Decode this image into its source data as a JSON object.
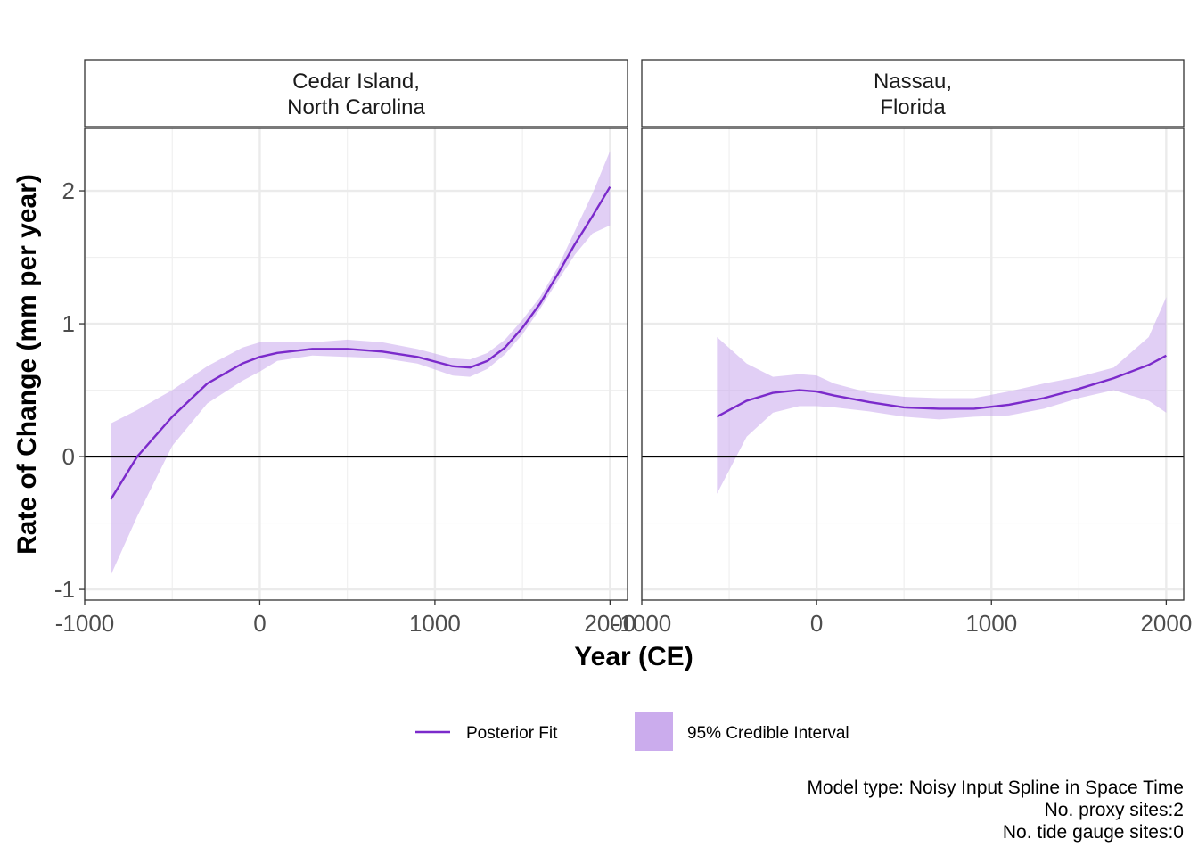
{
  "chart_data": {
    "type": "line",
    "xlabel": "Year (CE)",
    "ylabel": "Rate of Change (mm per year)",
    "xlim": [
      -1000,
      2100
    ],
    "ylim": [
      -1.08,
      2.47
    ],
    "x_ticks": [
      -1000,
      0,
      1000,
      2000
    ],
    "x_tick_labels": [
      "-1000",
      "0",
      "1000",
      "2000"
    ],
    "y_ticks": [
      -1,
      0,
      1,
      2
    ],
    "y_tick_labels": [
      "-1",
      "0",
      "1",
      "2"
    ],
    "grid": true,
    "legend_position": "bottom",
    "reference_line_y": 0,
    "colors": {
      "fit": "#7b2acb",
      "band": "#c8a8ec",
      "band_opacity": 0.55,
      "ref_line": "#000000"
    },
    "legend": [
      {
        "label": "Posterior Fit",
        "kind": "line"
      },
      {
        "label": "95% Credible Interval",
        "kind": "band"
      }
    ],
    "caption": [
      "Model type: Noisy Input Spline in Space Time",
      "No. proxy sites:2",
      "No. tide gauge sites:0"
    ],
    "panels": [
      {
        "title_lines": [
          "Cedar Island,",
          "North Carolina"
        ],
        "series": [
          {
            "name": "Posterior Fit",
            "x": [
              -850,
              -700,
              -500,
              -300,
              -100,
              0,
              100,
              300,
              500,
              700,
              900,
              1100,
              1200,
              1300,
              1400,
              1500,
              1600,
              1700,
              1800,
              1900,
              2000
            ],
            "y": [
              -0.32,
              0.0,
              0.3,
              0.55,
              0.7,
              0.75,
              0.78,
              0.81,
              0.81,
              0.79,
              0.75,
              0.68,
              0.67,
              0.72,
              0.82,
              0.97,
              1.15,
              1.37,
              1.6,
              1.81,
              2.03
            ]
          }
        ],
        "band": {
          "name": "95% Credible Interval",
          "x": [
            -850,
            -700,
            -500,
            -300,
            -100,
            0,
            100,
            300,
            500,
            700,
            900,
            1100,
            1200,
            1300,
            1400,
            1500,
            1600,
            1700,
            1800,
            1900,
            2000
          ],
          "lower": [
            -0.89,
            -0.45,
            0.08,
            0.4,
            0.57,
            0.64,
            0.72,
            0.76,
            0.75,
            0.74,
            0.7,
            0.61,
            0.6,
            0.66,
            0.77,
            0.92,
            1.11,
            1.32,
            1.52,
            1.68,
            1.74
          ],
          "upper": [
            0.25,
            0.35,
            0.5,
            0.68,
            0.82,
            0.86,
            0.86,
            0.86,
            0.88,
            0.86,
            0.81,
            0.74,
            0.73,
            0.78,
            0.88,
            1.03,
            1.2,
            1.42,
            1.7,
            1.98,
            2.3
          ]
        }
      },
      {
        "title_lines": [
          "Nassau,",
          "Florida"
        ],
        "series": [
          {
            "name": "Posterior Fit",
            "x": [
              -570,
              -400,
              -250,
              -100,
              0,
              100,
              300,
              500,
              700,
              900,
              1100,
              1300,
              1500,
              1700,
              1900,
              2000
            ],
            "y": [
              0.3,
              0.42,
              0.48,
              0.5,
              0.49,
              0.46,
              0.41,
              0.37,
              0.36,
              0.36,
              0.39,
              0.44,
              0.51,
              0.59,
              0.69,
              0.76
            ]
          }
        ],
        "band": {
          "name": "95% Credible Interval",
          "x": [
            -570,
            -400,
            -250,
            -100,
            0,
            100,
            300,
            500,
            700,
            900,
            1100,
            1300,
            1500,
            1700,
            1900,
            2000
          ],
          "lower": [
            -0.28,
            0.15,
            0.33,
            0.38,
            0.38,
            0.37,
            0.34,
            0.3,
            0.28,
            0.3,
            0.31,
            0.36,
            0.44,
            0.5,
            0.42,
            0.33
          ],
          "upper": [
            0.9,
            0.7,
            0.6,
            0.62,
            0.61,
            0.55,
            0.48,
            0.45,
            0.44,
            0.44,
            0.49,
            0.55,
            0.6,
            0.67,
            0.9,
            1.2
          ]
        }
      }
    ]
  }
}
